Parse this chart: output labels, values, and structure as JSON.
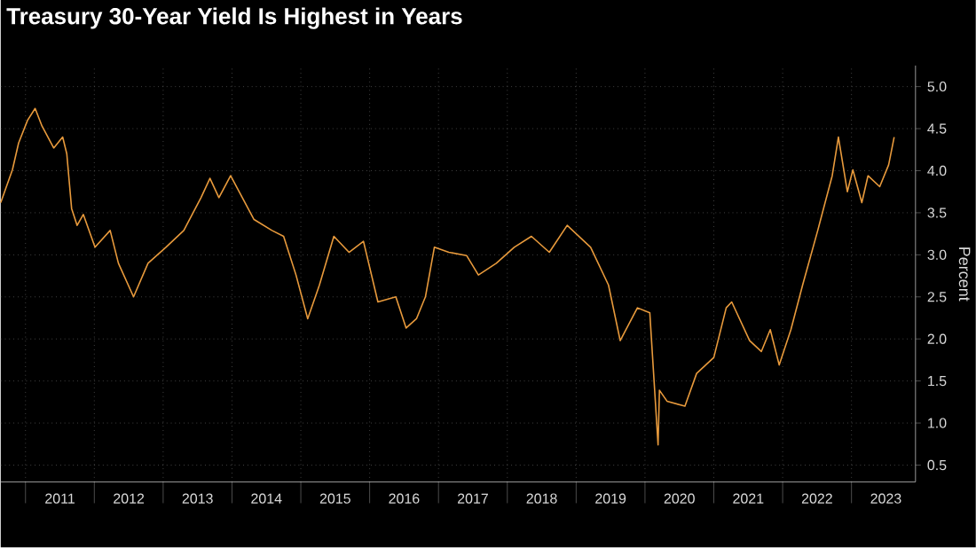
{
  "chart_data": {
    "type": "line",
    "title": "Treasury 30-Year Yield Is Highest in Years",
    "ylabel": "Percent",
    "series": [
      {
        "color": "#e89a3c",
        "x": [
          2010.64,
          2010.81,
          2010.9,
          2011.03,
          2011.14,
          2011.24,
          2011.41,
          2011.54,
          2011.6,
          2011.67,
          2011.75,
          2011.84,
          2012.01,
          2012.23,
          2012.35,
          2012.57,
          2012.78,
          2013.04,
          2013.3,
          2013.55,
          2013.68,
          2013.81,
          2013.98,
          2014.15,
          2014.32,
          2014.58,
          2014.75,
          2014.93,
          2015.1,
          2015.27,
          2015.48,
          2015.7,
          2015.91,
          2016.12,
          2016.38,
          2016.53,
          2016.68,
          2016.81,
          2016.94,
          2017.15,
          2017.41,
          2017.58,
          2017.84,
          2018.1,
          2018.35,
          2018.61,
          2018.87,
          2019.21,
          2019.47,
          2019.64,
          2019.89,
          2020.07,
          2020.19,
          2020.21,
          2020.32,
          2020.58,
          2020.75,
          2021.0,
          2021.18,
          2021.26,
          2021.52,
          2021.69,
          2021.82,
          2021.95,
          2022.12,
          2022.29,
          2022.51,
          2022.72,
          2022.81,
          2022.94,
          2023.02,
          2023.15,
          2023.24,
          2023.41,
          2023.54,
          2023.62
        ],
        "values": [
          3.62,
          4.01,
          4.33,
          4.6,
          4.74,
          4.53,
          4.27,
          4.4,
          4.2,
          3.55,
          3.35,
          3.48,
          3.09,
          3.29,
          2.9,
          2.5,
          2.9,
          3.09,
          3.29,
          3.68,
          3.91,
          3.68,
          3.94,
          3.68,
          3.42,
          3.29,
          3.22,
          2.76,
          2.24,
          2.64,
          3.22,
          3.03,
          3.16,
          2.44,
          2.5,
          2.13,
          2.24,
          2.5,
          3.09,
          3.03,
          2.99,
          2.76,
          2.9,
          3.09,
          3.22,
          3.03,
          3.35,
          3.09,
          2.64,
          1.98,
          2.37,
          2.31,
          0.74,
          1.39,
          1.26,
          1.2,
          1.59,
          1.78,
          2.37,
          2.44,
          1.98,
          1.85,
          2.11,
          1.69,
          2.11,
          2.64,
          3.29,
          3.94,
          4.4,
          3.75,
          4.01,
          3.62,
          3.94,
          3.81,
          4.07,
          4.4
        ]
      }
    ],
    "xlim": [
      2010.64,
      2023.93
    ],
    "ylim": [
      0.3,
      5.25
    ],
    "xticks": [
      {
        "value": 2011,
        "label": null
      },
      {
        "value": 2011.5,
        "label": "2011"
      },
      {
        "value": 2012,
        "label": null
      },
      {
        "value": 2012.5,
        "label": "2012"
      },
      {
        "value": 2013,
        "label": null
      },
      {
        "value": 2013.5,
        "label": "2013"
      },
      {
        "value": 2014,
        "label": null
      },
      {
        "value": 2014.5,
        "label": "2014"
      },
      {
        "value": 2015,
        "label": null
      },
      {
        "value": 2015.5,
        "label": "2015"
      },
      {
        "value": 2016,
        "label": null
      },
      {
        "value": 2016.5,
        "label": "2016"
      },
      {
        "value": 2017,
        "label": null
      },
      {
        "value": 2017.5,
        "label": "2017"
      },
      {
        "value": 2018,
        "label": null
      },
      {
        "value": 2018.5,
        "label": "2018"
      },
      {
        "value": 2019,
        "label": null
      },
      {
        "value": 2019.5,
        "label": "2019"
      },
      {
        "value": 2020,
        "label": null
      },
      {
        "value": 2020.5,
        "label": "2020"
      },
      {
        "value": 2021,
        "label": null
      },
      {
        "value": 2021.5,
        "label": "2021"
      },
      {
        "value": 2022,
        "label": null
      },
      {
        "value": 2022.5,
        "label": "2022"
      },
      {
        "value": 2023,
        "label": null
      },
      {
        "value": 2023.5,
        "label": "2023"
      }
    ],
    "yticks": [
      {
        "value": 0.5,
        "label": "0.5"
      },
      {
        "value": 1,
        "label": "1.0"
      },
      {
        "value": 1.5,
        "label": "1.5"
      },
      {
        "value": 2,
        "label": "2.0"
      },
      {
        "value": 2.5,
        "label": "2.5"
      },
      {
        "value": 3,
        "label": "3.0"
      },
      {
        "value": 3.5,
        "label": "3.5"
      },
      {
        "value": 4,
        "label": "4.0"
      },
      {
        "value": 4.5,
        "label": "4.5"
      },
      {
        "value": 5,
        "label": "5.0"
      }
    ],
    "grid": true,
    "line_style": "solid",
    "marker": "none"
  }
}
